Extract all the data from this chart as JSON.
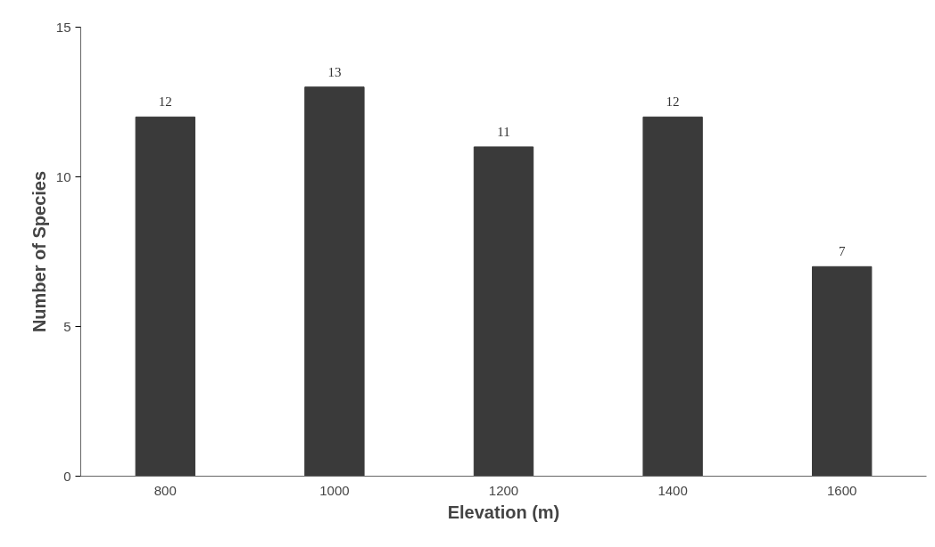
{
  "chart_data": {
    "type": "bar",
    "xlabel": "Elevation (m)",
    "ylabel": "Number of Species",
    "categories": [
      "800",
      "1000",
      "1200",
      "1400",
      "1600"
    ],
    "values": [
      12,
      13,
      11,
      12,
      7
    ],
    "color": "#3a3a3a",
    "ylim": [
      0,
      15
    ],
    "yticks": [
      0,
      5,
      10,
      15
    ],
    "grid": false,
    "data_labels": true
  }
}
